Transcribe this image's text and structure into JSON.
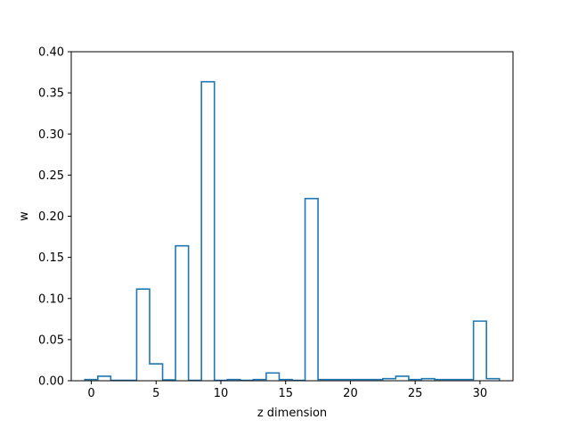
{
  "chart_data": {
    "type": "bar",
    "style": "step-outline",
    "xlabel": "z dimension",
    "ylabel": "w",
    "ylim": [
      0,
      0.4
    ],
    "xlim": [
      -1.55,
      32.55
    ],
    "xticks": [
      0,
      5,
      10,
      15,
      20,
      25,
      30
    ],
    "xtick_labels": [
      "0",
      "5",
      "10",
      "15",
      "20",
      "25",
      "30"
    ],
    "yticks": [
      0.0,
      0.05,
      0.1,
      0.15,
      0.2,
      0.25,
      0.3,
      0.35,
      0.4
    ],
    "ytick_labels": [
      "0.00",
      "0.05",
      "0.10",
      "0.15",
      "0.20",
      "0.25",
      "0.30",
      "0.35",
      "0.40"
    ],
    "x": [
      0,
      1,
      2,
      3,
      4,
      5,
      6,
      7,
      8,
      9,
      10,
      11,
      12,
      13,
      14,
      15,
      16,
      17,
      18,
      19,
      20,
      21,
      22,
      23,
      24,
      25,
      26,
      27,
      28,
      29,
      30,
      31
    ],
    "values": [
      0.0015,
      0.0055,
      0.0005,
      0.0005,
      0.1115,
      0.0205,
      0.001,
      0.164,
      0.0005,
      0.3635,
      0.0005,
      0.0015,
      0.0005,
      0.0015,
      0.0095,
      0.0015,
      0.0005,
      0.2215,
      0.0015,
      0.0015,
      0.0015,
      0.0015,
      0.0015,
      0.0025,
      0.0055,
      0.0015,
      0.0025,
      0.0015,
      0.0015,
      0.0015,
      0.0725,
      0.0025
    ],
    "color": "#1f77b4",
    "grid": false
  }
}
